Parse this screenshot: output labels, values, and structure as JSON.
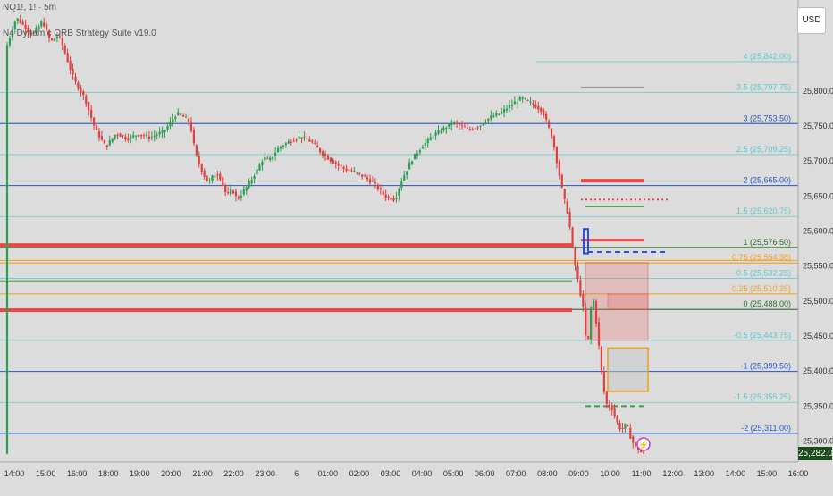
{
  "header": {
    "symbol": "NQ1!, 1! · 5m",
    "indicator": "N4 Dynamic ORB Strategy Suite v19.0"
  },
  "currency": "USD",
  "last_price": "25,282.00",
  "colors": {
    "background": "#dcdcdc",
    "up_candle": "#2e9e4f",
    "down_candle": "#e0403f",
    "blue_level": "#2a59c8",
    "cyan_level": "#5bc8c8",
    "red_level": "#f04444",
    "orange_level": "#f0a020",
    "green_level": "#4a9a3a",
    "darkgreen_level": "#2e6f2e"
  },
  "chart_data": {
    "type": "candlestick",
    "title": "",
    "ylim": [
      25270,
      25930
    ],
    "y_ticks": [
      "25,800.00",
      "25,750.00",
      "25,700.00",
      "25,650.00",
      "25,600.00",
      "25,550.00",
      "25,500.00",
      "25,450.00",
      "25,400.00",
      "25,350.00",
      "25,300.00"
    ],
    "x_ticks": [
      "14:00",
      "15:00",
      "16:00",
      "18:00",
      "19:00",
      "20:00",
      "21:00",
      "22:00",
      "23:00",
      "6",
      "01:00",
      "02:00",
      "03:00",
      "04:00",
      "05:00",
      "06:00",
      "07:00",
      "08:00",
      "09:00",
      "10:00",
      "11:00",
      "12:00",
      "13:00",
      "14:00",
      "15:00",
      "16:00"
    ],
    "level_labels": [
      {
        "label": "4 (25,842.00)",
        "value": 25842.0,
        "color": "cyan"
      },
      {
        "label": "3.5 (25,797.75)",
        "value": 25797.75,
        "color": "cyan"
      },
      {
        "label": "3 (25,753.50)",
        "value": 25753.5,
        "color": "blue"
      },
      {
        "label": "2.5 (25,709.25)",
        "value": 25709.25,
        "color": "cyan"
      },
      {
        "label": "2 (25,665.00)",
        "value": 25665.0,
        "color": "blue"
      },
      {
        "label": "1.5 (25,620.75)",
        "value": 25620.75,
        "color": "cyan"
      },
      {
        "label": "1 (25,576.50)",
        "value": 25576.5,
        "color": "darkgreen"
      },
      {
        "label": "0.75 (25,554.38)",
        "value": 25554.38,
        "color": "orange"
      },
      {
        "label": "0.5 (25,532.25)",
        "value": 25532.25,
        "color": "cyan"
      },
      {
        "label": "0.25 (25,510.25)",
        "value": 25510.25,
        "color": "orange"
      },
      {
        "label": "0 (25,488.00)",
        "value": 25488.0,
        "color": "darkgreen"
      },
      {
        "label": "-0.5 (25,443.75)",
        "value": 25443.75,
        "color": "cyan"
      },
      {
        "label": "-1 (25,399.50)",
        "value": 25399.5,
        "color": "blue"
      },
      {
        "label": "-1.5 (25,355.25)",
        "value": 25355.25,
        "color": "cyan"
      },
      {
        "label": "-2 (25,311.00)",
        "value": 25311.0,
        "color": "blue"
      }
    ],
    "price_path": [
      [
        0,
        25860
      ],
      [
        4,
        25905
      ],
      [
        10,
        25880
      ],
      [
        14,
        25900
      ],
      [
        17,
        25870
      ],
      [
        20,
        25880
      ],
      [
        22,
        25860
      ],
      [
        26,
        25815
      ],
      [
        30,
        25790
      ],
      [
        34,
        25745
      ],
      [
        38,
        25720
      ],
      [
        42,
        25740
      ],
      [
        46,
        25732
      ],
      [
        50,
        25738
      ],
      [
        55,
        25734
      ],
      [
        60,
        25742
      ],
      [
        65,
        25768
      ],
      [
        68,
        25762
      ],
      [
        70,
        25755
      ],
      [
        72,
        25712
      ],
      [
        74,
        25690
      ],
      [
        77,
        25668
      ],
      [
        79,
        25680
      ],
      [
        81,
        25682
      ],
      [
        84,
        25650
      ],
      [
        86,
        25660
      ],
      [
        88,
        25645
      ],
      [
        92,
        25665
      ],
      [
        96,
        25690
      ],
      [
        98,
        25705
      ],
      [
        100,
        25700
      ],
      [
        104,
        25720
      ],
      [
        108,
        25728
      ],
      [
        112,
        25735
      ],
      [
        116,
        25728
      ],
      [
        120,
        25712
      ],
      [
        124,
        25700
      ],
      [
        128,
        25690
      ],
      [
        132,
        25685
      ],
      [
        136,
        25678
      ],
      [
        140,
        25668
      ],
      [
        144,
        25650
      ],
      [
        148,
        25645
      ],
      [
        150,
        25668
      ],
      [
        154,
        25700
      ],
      [
        158,
        25720
      ],
      [
        162,
        25735
      ],
      [
        166,
        25745
      ],
      [
        170,
        25755
      ],
      [
        172,
        25752
      ],
      [
        176,
        25745
      ],
      [
        180,
        25750
      ],
      [
        184,
        25762
      ],
      [
        188,
        25768
      ],
      [
        192,
        25780
      ],
      [
        196,
        25790
      ],
      [
        200,
        25782
      ],
      [
        204,
        25772
      ],
      [
        206,
        25752
      ],
      [
        208,
        25730
      ],
      [
        210,
        25690
      ],
      [
        212,
        25650
      ],
      [
        214,
        25620
      ],
      [
        215,
        25590
      ],
      [
        216,
        25560
      ],
      [
        217,
        25540
      ],
      [
        218,
        25520
      ],
      [
        219,
        25500
      ],
      [
        220,
        25480
      ],
      [
        221,
        25420
      ],
      [
        222,
        25470
      ],
      [
        223,
        25510
      ],
      [
        224,
        25490
      ],
      [
        225,
        25450
      ],
      [
        226,
        25420
      ],
      [
        227,
        25380
      ],
      [
        228,
        25360
      ],
      [
        229,
        25345
      ],
      [
        230,
        25352
      ],
      [
        232,
        25330
      ],
      [
        234,
        25315
      ],
      [
        236,
        25325
      ],
      [
        238,
        25300
      ],
      [
        240,
        25290
      ],
      [
        242,
        25282
      ]
    ],
    "annotations": []
  }
}
